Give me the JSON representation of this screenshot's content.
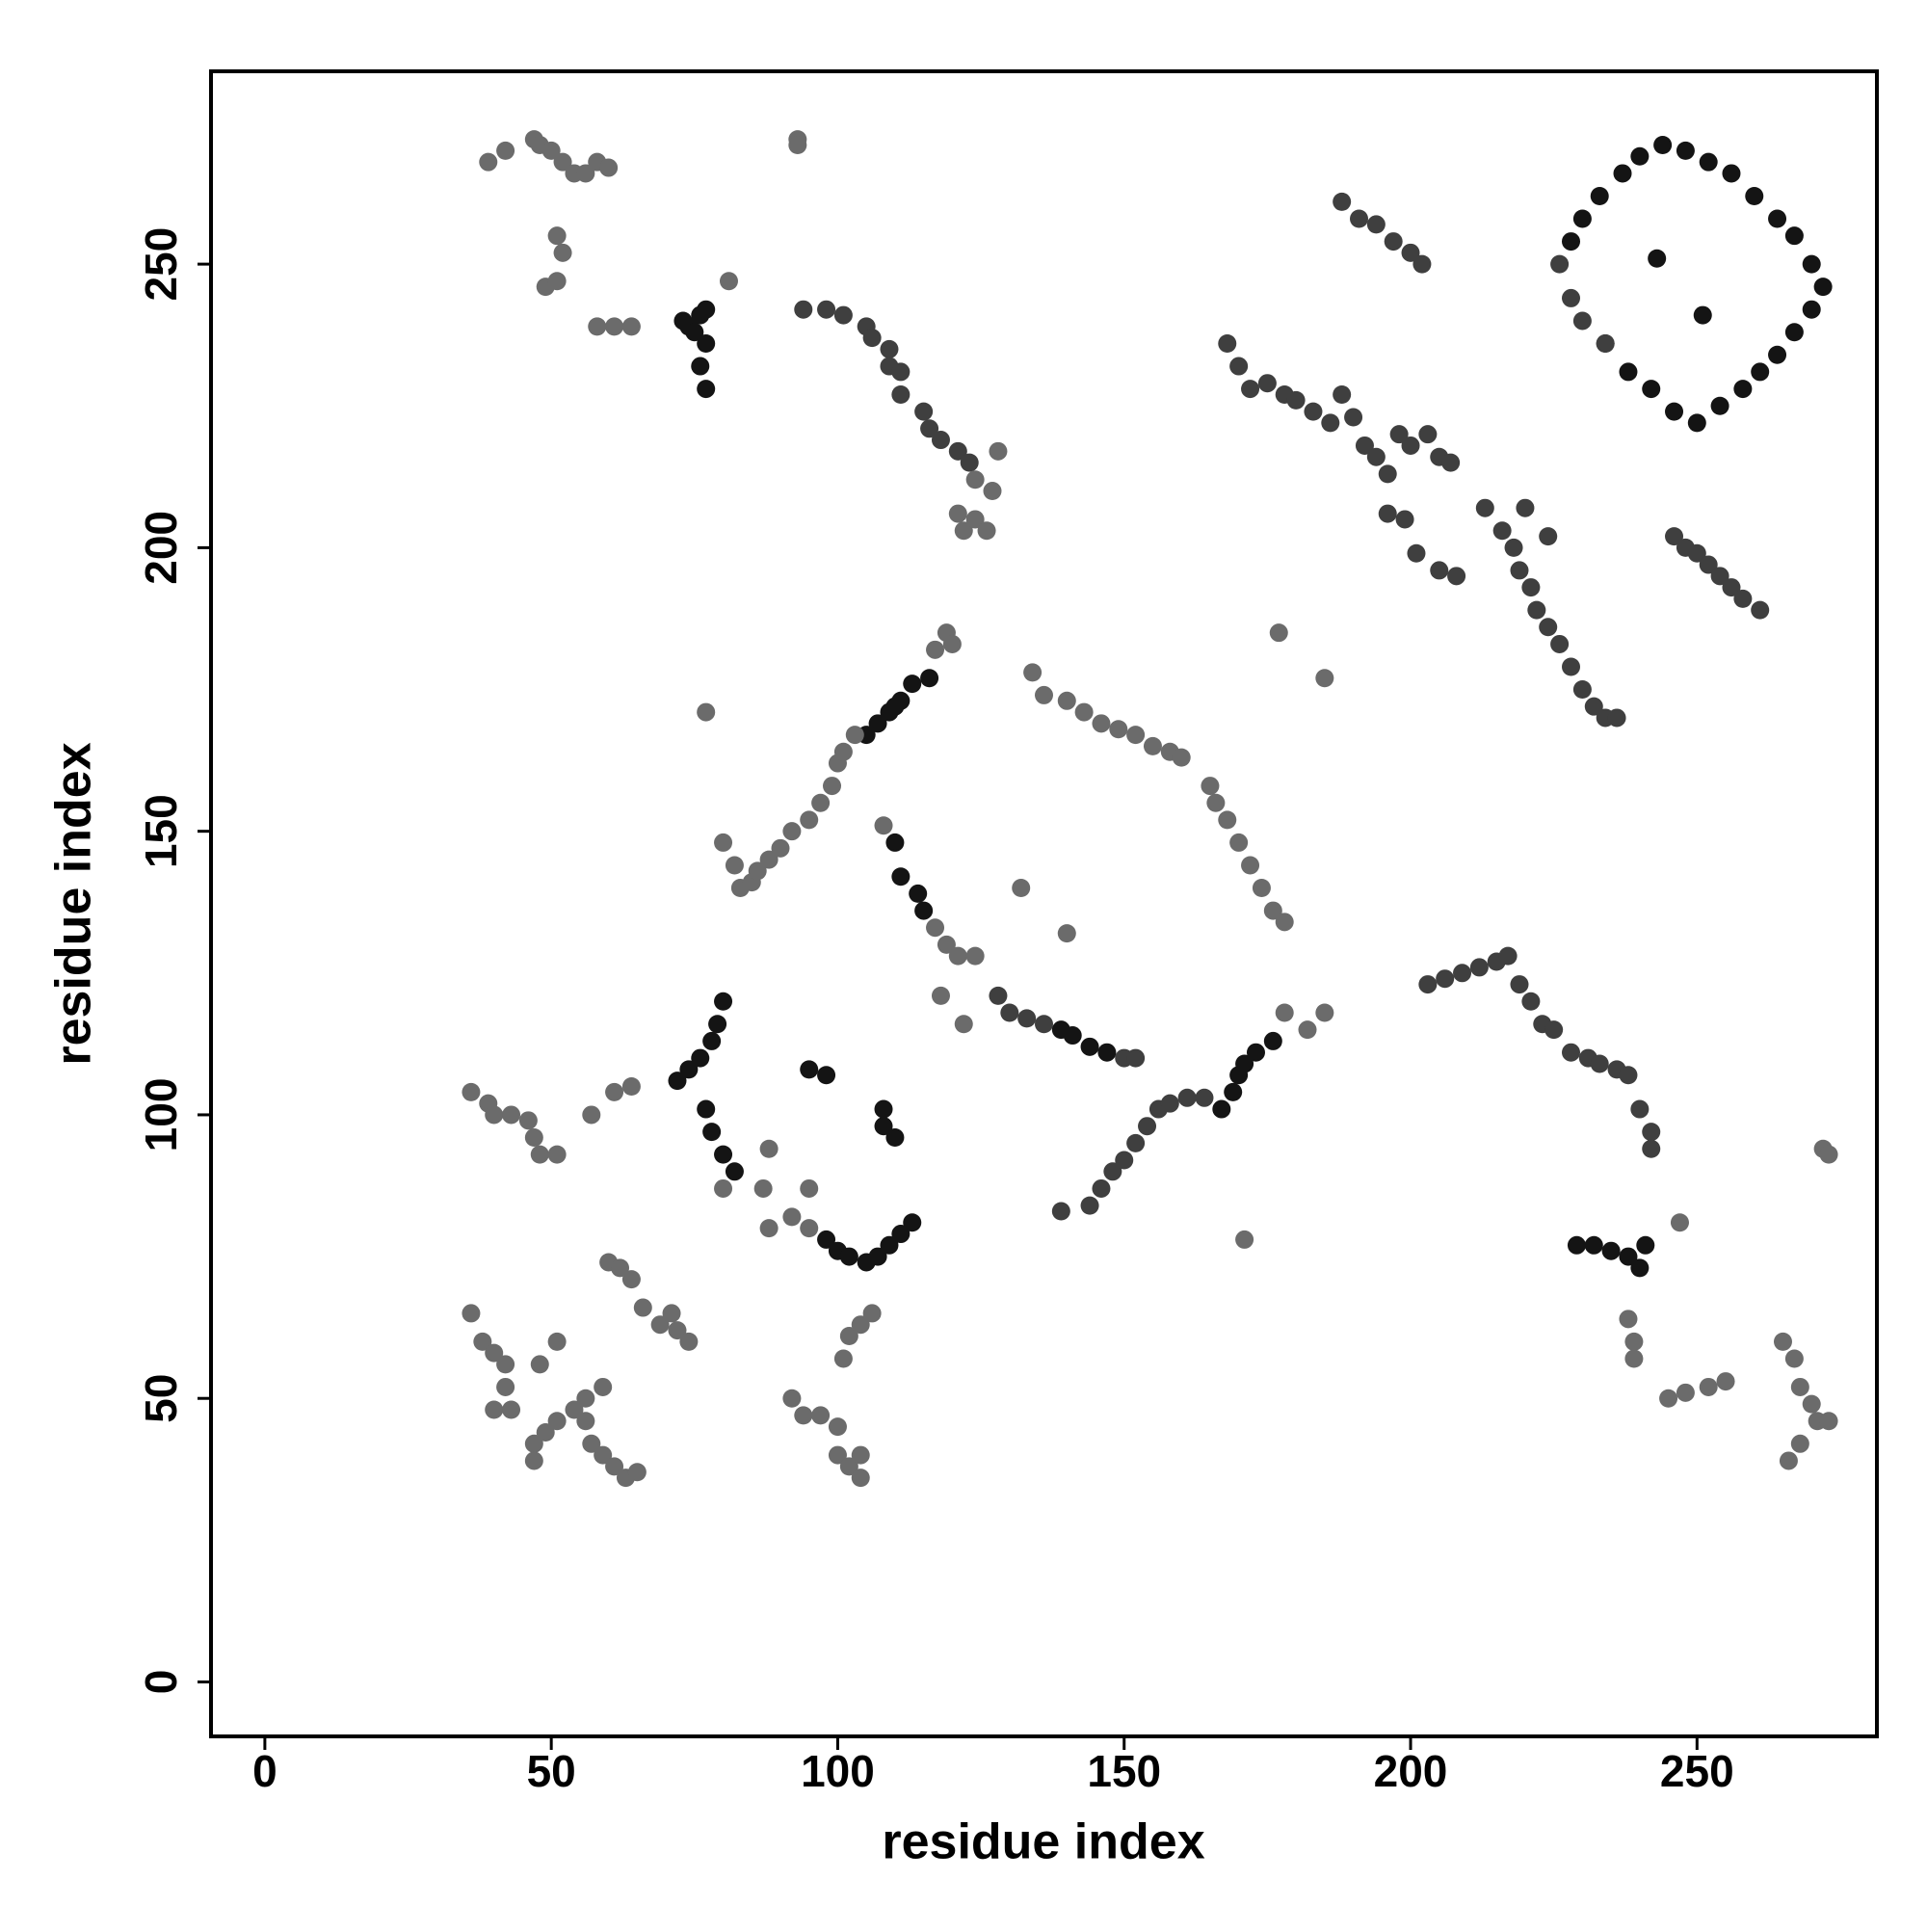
{
  "chart_data": {
    "type": "scatter",
    "x_label": "residue index",
    "y_label": "residue index",
    "xlim": [
      -9.4,
      281.4
    ],
    "ylim": [
      -9.6,
      284
    ],
    "xticks": [
      0,
      50,
      100,
      150,
      200,
      250
    ],
    "yticks": [
      0,
      50,
      100,
      150,
      200,
      250
    ],
    "grid": false,
    "series": [
      {
        "color": "#141414",
        "x": [
          72,
          74,
          76,
          78,
          79,
          80,
          77,
          78,
          80,
          82,
          98,
          100,
          102,
          105,
          107,
          109,
          111,
          113,
          95,
          98,
          108,
          108,
          110,
          73,
          74,
          75,
          76,
          77,
          77,
          76,
          77,
          105,
          107,
          109,
          110,
          111,
          113,
          116,
          228,
          230,
          233,
          237,
          240,
          244,
          248,
          252,
          256,
          260,
          264,
          267,
          270,
          272,
          270,
          267,
          264,
          261,
          258,
          254,
          250,
          246,
          242,
          238,
          234,
          251,
          243,
          229,
          232,
          235,
          238,
          240,
          241,
          110,
          111,
          114,
          115,
          139,
          141,
          144,
          147,
          167,
          169,
          170,
          171,
          173,
          176
        ],
        "values": [
          106,
          108,
          110,
          113,
          116,
          120,
          101,
          97,
          93,
          90,
          78,
          76,
          75,
          74,
          75,
          77,
          79,
          81,
          108,
          107,
          101,
          98,
          96,
          240,
          239,
          238,
          241,
          242,
          236,
          232,
          228,
          167,
          169,
          171,
          172,
          173,
          176,
          177,
          254,
          258,
          262,
          266,
          269,
          271,
          270,
          268,
          266,
          262,
          258,
          255,
          250,
          246,
          242,
          238,
          234,
          231,
          228,
          225,
          222,
          224,
          228,
          231,
          236,
          241,
          251,
          77,
          77,
          76,
          75,
          73,
          77,
          148,
          142,
          139,
          136,
          115,
          114,
          112,
          111,
          101,
          104,
          107,
          109,
          111,
          113
        ]
      },
      {
        "color": "#3f3f3f",
        "x": [
          168,
          170,
          172,
          175,
          178,
          180,
          183,
          186,
          188,
          190,
          192,
          194,
          196,
          198,
          200,
          203,
          205,
          207,
          196,
          199,
          201,
          205,
          208,
          213,
          216,
          218,
          219,
          221,
          222,
          224,
          226,
          228,
          230,
          232,
          234,
          236,
          220,
          224,
          188,
          191,
          194,
          197,
          200,
          202,
          246,
          248,
          250,
          252,
          254,
          256,
          258,
          261,
          128,
          130,
          133,
          136,
          150,
          152,
          139,
          144,
          146,
          148,
          150,
          152,
          154,
          156,
          158,
          161,
          164,
          203,
          206,
          209,
          212,
          215,
          217,
          219,
          221,
          223,
          225,
          228,
          231,
          233,
          236,
          238,
          240,
          242,
          242,
          94,
          98,
          101,
          105,
          106,
          109,
          109,
          111,
          111,
          115,
          116,
          118,
          121,
          123,
          226,
          230,
          234,
          228
        ],
        "values": [
          236,
          232,
          228,
          229,
          227,
          226,
          224,
          222,
          227,
          223,
          218,
          216,
          213,
          220,
          218,
          220,
          216,
          215,
          206,
          205,
          199,
          196,
          195,
          207,
          203,
          200,
          196,
          193,
          189,
          186,
          183,
          179,
          175,
          172,
          170,
          170,
          207,
          202,
          261,
          258,
          257,
          254,
          252,
          250,
          202,
          200,
          199,
          197,
          195,
          193,
          191,
          189,
          121,
          118,
          117,
          116,
          110,
          110,
          83,
          84,
          87,
          90,
          92,
          95,
          98,
          101,
          102,
          103,
          103,
          123,
          124,
          125,
          126,
          127,
          128,
          123,
          120,
          116,
          115,
          111,
          110,
          109,
          108,
          107,
          101,
          97,
          94,
          242,
          242,
          241,
          239,
          237,
          235,
          232,
          231,
          227,
          224,
          221,
          219,
          217,
          215,
          250,
          240,
          236,
          244
        ]
      },
      {
        "color": "#6b6b6b",
        "x": [
          39,
          42,
          47,
          48,
          50,
          52,
          54,
          56,
          58,
          60,
          51,
          52,
          49,
          51,
          61,
          58,
          64,
          81,
          93,
          93,
          124,
          127,
          128,
          121,
          122,
          124,
          126,
          77,
          80,
          82,
          83,
          85,
          86,
          88,
          90,
          92,
          95,
          97,
          99,
          100,
          101,
          103,
          117,
          119,
          120,
          108,
          117,
          119,
          121,
          124,
          118,
          122,
          132,
          140,
          134,
          136,
          140,
          143,
          146,
          149,
          152,
          155,
          158,
          160,
          165,
          166,
          168,
          170,
          172,
          174,
          176,
          178,
          177,
          185,
          171,
          178,
          182,
          185,
          88,
          92,
          95,
          88,
          95,
          80,
          87,
          36,
          39,
          40,
          43,
          46,
          47,
          48,
          51,
          57,
          61,
          64,
          36,
          38,
          40,
          42,
          42,
          40,
          43,
          47,
          47,
          49,
          51,
          54,
          56,
          57,
          59,
          61,
          63,
          65,
          48,
          51,
          56,
          59,
          60,
          62,
          64,
          66,
          69,
          72,
          74,
          71,
          92,
          94,
          97,
          100,
          100,
          102,
          104,
          104,
          101,
          102,
          104,
          106,
          247,
          238,
          239,
          239,
          245,
          248,
          252,
          255,
          265,
          267,
          268,
          270,
          271,
          273,
          266,
          268,
          272,
          273
        ],
        "values": [
          268,
          270,
          272,
          271,
          270,
          268,
          266,
          266,
          268,
          267,
          255,
          252,
          246,
          247,
          239,
          239,
          239,
          247,
          272,
          271,
          212,
          210,
          217,
          206,
          203,
          205,
          203,
          171,
          148,
          144,
          140,
          141,
          143,
          145,
          147,
          150,
          152,
          155,
          158,
          162,
          164,
          167,
          182,
          185,
          183,
          151,
          133,
          130,
          128,
          128,
          121,
          116,
          140,
          132,
          178,
          174,
          173,
          171,
          169,
          168,
          167,
          165,
          164,
          163,
          158,
          155,
          152,
          148,
          144,
          140,
          136,
          134,
          185,
          177,
          78,
          118,
          115,
          118,
          80,
          82,
          80,
          94,
          87,
          87,
          87,
          104,
          102,
          100,
          100,
          99,
          96,
          93,
          93,
          100,
          104,
          105,
          65,
          60,
          58,
          56,
          52,
          48,
          48,
          42,
          39,
          44,
          46,
          48,
          46,
          42,
          40,
          38,
          36,
          37,
          56,
          60,
          50,
          52,
          74,
          73,
          71,
          66,
          63,
          62,
          60,
          65,
          50,
          47,
          47,
          45,
          40,
          38,
          36,
          40,
          57,
          61,
          63,
          65,
          81,
          64,
          60,
          57,
          50,
          51,
          52,
          53,
          60,
          57,
          52,
          49,
          46,
          46,
          39,
          42,
          94,
          93
        ]
      }
    ]
  }
}
